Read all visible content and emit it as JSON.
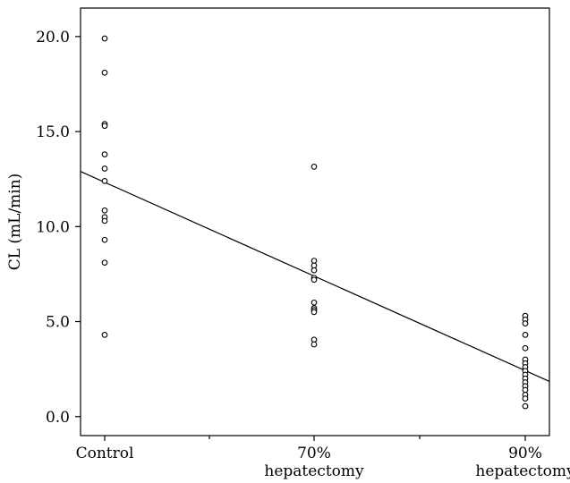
{
  "chart_data": {
    "type": "scatter",
    "title": "",
    "xlabel": "",
    "ylabel": "CL (mL/min)",
    "ylim": [
      -1.0,
      21.5
    ],
    "categories": [
      [
        "Control"
      ],
      [
        "70%",
        "hepatectomy"
      ],
      [
        "90%",
        "hepatectomy"
      ]
    ],
    "yticks": [
      0,
      5,
      10,
      15,
      20
    ],
    "ytick_labels": [
      "0.0",
      "5.0",
      "10.0",
      "15.0",
      "20.0"
    ],
    "grid": false,
    "legend": "none",
    "series": [
      {
        "category_index": 0,
        "values": [
          19.9,
          18.1,
          15.4,
          15.3,
          13.8,
          13.05,
          12.4,
          10.85,
          10.5,
          10.3,
          9.3,
          8.1,
          4.3
        ]
      },
      {
        "category_index": 1,
        "values": [
          13.15,
          8.2,
          7.95,
          7.7,
          7.3,
          7.2,
          6.0,
          5.7,
          5.6,
          5.5,
          4.05,
          3.8
        ]
      },
      {
        "category_index": 2,
        "values": [
          5.3,
          5.1,
          4.9,
          4.3,
          3.6,
          3.0,
          2.8,
          2.6,
          2.4,
          2.2,
          2.0,
          1.8,
          1.6,
          1.4,
          1.15,
          0.95,
          0.55
        ]
      }
    ],
    "trend_line": {
      "at_first_category_edge": 12.9,
      "at_last_category_edge": 1.85
    },
    "colors": {
      "axis": "#000000",
      "points": "#000000",
      "line": "#000000"
    }
  }
}
